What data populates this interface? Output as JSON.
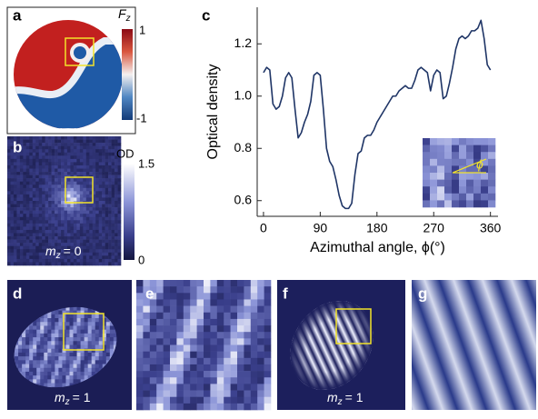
{
  "panels": {
    "a": {
      "label": "a",
      "colorbar": {
        "symbol": "F",
        "subscript": "z",
        "max": 1,
        "min": -1
      }
    },
    "b": {
      "label": "b",
      "colorbar": {
        "title": "OD",
        "max": 1.5,
        "min": 0
      },
      "caption": {
        "symbol": "m",
        "subscript": "z",
        "text": "= 0"
      }
    },
    "c": {
      "label": "c",
      "inset_label": "ϕ"
    },
    "d": {
      "label": "d",
      "caption": {
        "symbol": "m",
        "subscript": "z",
        "text": "= 1"
      }
    },
    "e": {
      "label": "e"
    },
    "f": {
      "label": "f",
      "caption": {
        "symbol": "m",
        "subscript": "z",
        "text": "= 1"
      }
    },
    "g": {
      "label": "g"
    }
  },
  "chart_data": {
    "type": "line",
    "x_label": "Azimuthal angle, ϕ(°)",
    "y_label": "Optical density",
    "x": [
      0,
      5,
      10,
      15,
      20,
      25,
      30,
      35,
      40,
      45,
      50,
      55,
      60,
      65,
      70,
      75,
      80,
      85,
      90,
      95,
      100,
      105,
      110,
      115,
      120,
      125,
      130,
      135,
      140,
      145,
      150,
      155,
      160,
      165,
      170,
      175,
      180,
      185,
      190,
      195,
      200,
      205,
      210,
      215,
      220,
      225,
      230,
      235,
      240,
      245,
      250,
      255,
      260,
      265,
      270,
      275,
      280,
      285,
      290,
      295,
      300,
      305,
      310,
      315,
      320,
      325,
      330,
      335,
      340,
      345,
      350,
      355,
      360
    ],
    "series": [
      {
        "name": "Optical density",
        "color": "#1f3566",
        "values": [
          1.09,
          1.11,
          1.1,
          0.97,
          0.95,
          0.96,
          1.0,
          1.07,
          1.09,
          1.07,
          0.95,
          0.84,
          0.86,
          0.9,
          0.93,
          0.98,
          1.08,
          1.09,
          1.08,
          0.95,
          0.8,
          0.75,
          0.73,
          0.68,
          0.62,
          0.58,
          0.57,
          0.57,
          0.59,
          0.7,
          0.78,
          0.79,
          0.84,
          0.85,
          0.85,
          0.87,
          0.9,
          0.92,
          0.94,
          0.96,
          0.98,
          1.0,
          1.0,
          1.02,
          1.03,
          1.04,
          1.03,
          1.03,
          1.06,
          1.1,
          1.11,
          1.1,
          1.09,
          1.02,
          1.08,
          1.1,
          1.09,
          0.99,
          1.0,
          1.05,
          1.11,
          1.18,
          1.22,
          1.23,
          1.22,
          1.23,
          1.25,
          1.25,
          1.26,
          1.29,
          1.22,
          1.12,
          1.1
        ]
      }
    ],
    "xlim": [
      -10,
      372
    ],
    "ylim": [
      0.54,
      1.34
    ],
    "xticks": [
      0,
      90,
      180,
      270,
      360
    ],
    "yticks": [
      0.6,
      0.8,
      {
        "value": 1,
        "label": "1.0"
      },
      1.2
    ]
  }
}
